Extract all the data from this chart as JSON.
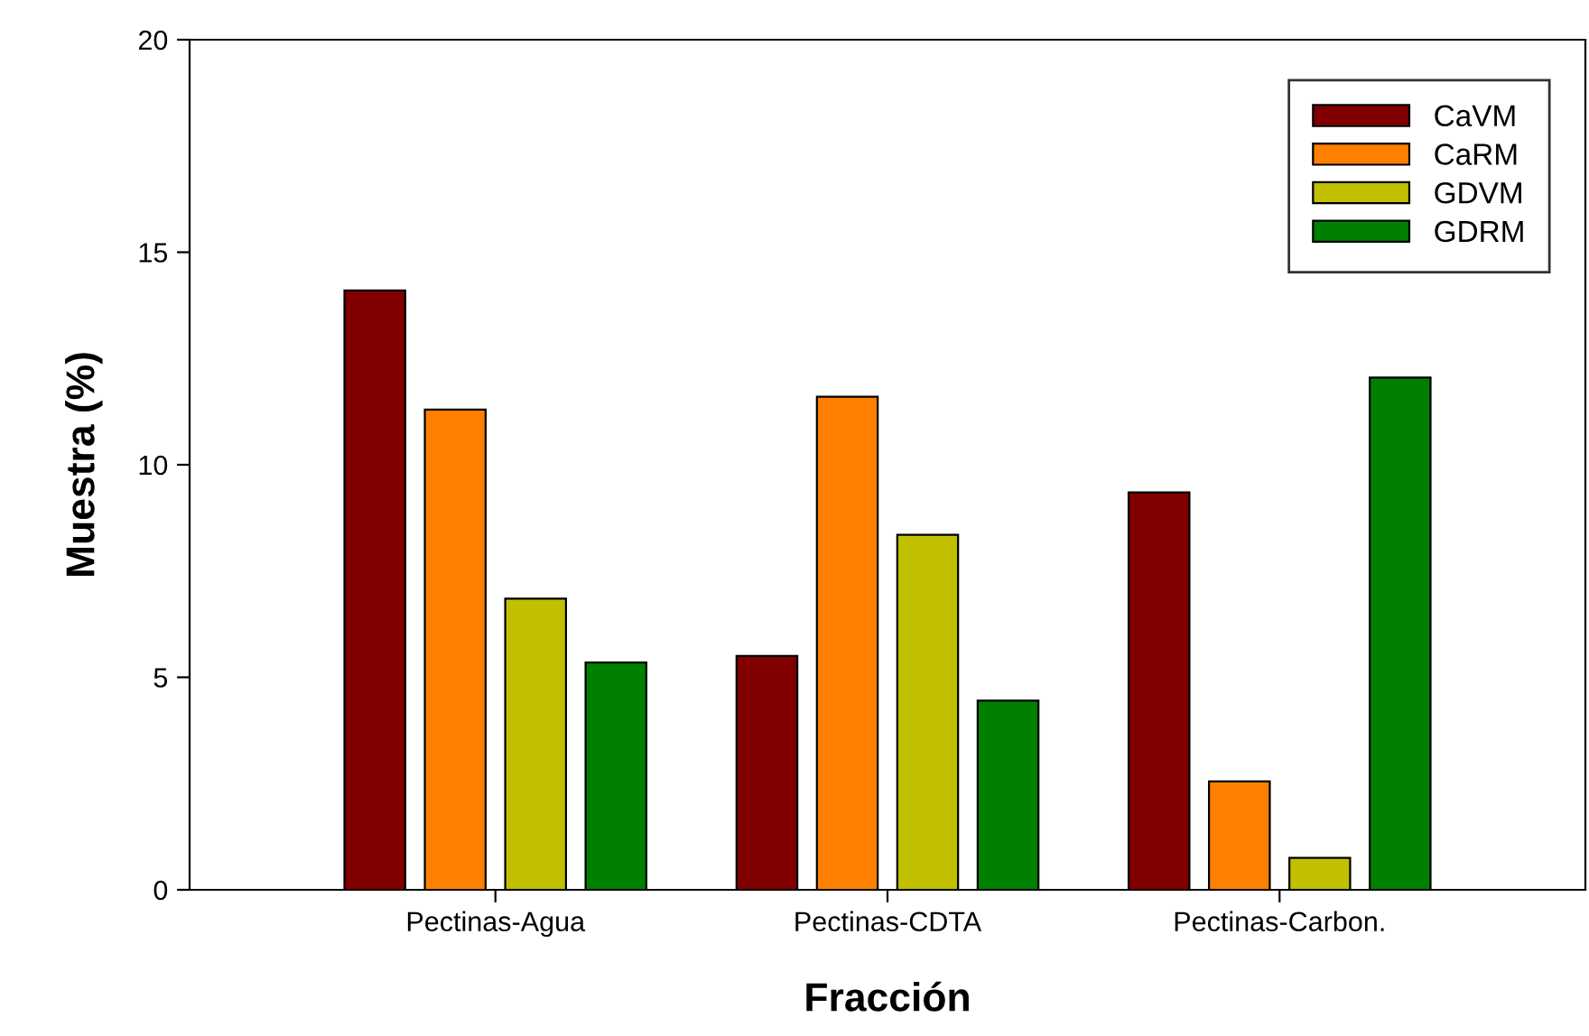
{
  "chart_data": {
    "type": "bar",
    "xlabel": "Fracción",
    "ylabel": "Muestra (%)",
    "categories": [
      "Pectinas-Agua",
      "Pectinas-CDTA",
      "Pectinas-Carbon."
    ],
    "series": [
      {
        "name": "CaVM",
        "color": "#800000",
        "values": [
          14.1,
          5.5,
          9.35
        ]
      },
      {
        "name": "CaRM",
        "color": "#ff8000",
        "values": [
          11.3,
          11.6,
          2.55
        ]
      },
      {
        "name": "GDVM",
        "color": "#c0c000",
        "values": [
          6.85,
          8.35,
          0.75
        ]
      },
      {
        "name": "GDRM",
        "color": "#008000",
        "values": [
          5.35,
          4.45,
          12.05
        ]
      }
    ],
    "ylim": [
      0,
      20
    ],
    "yticks": [
      0,
      5,
      10,
      15,
      20
    ],
    "grid": false,
    "legend": "top right"
  }
}
